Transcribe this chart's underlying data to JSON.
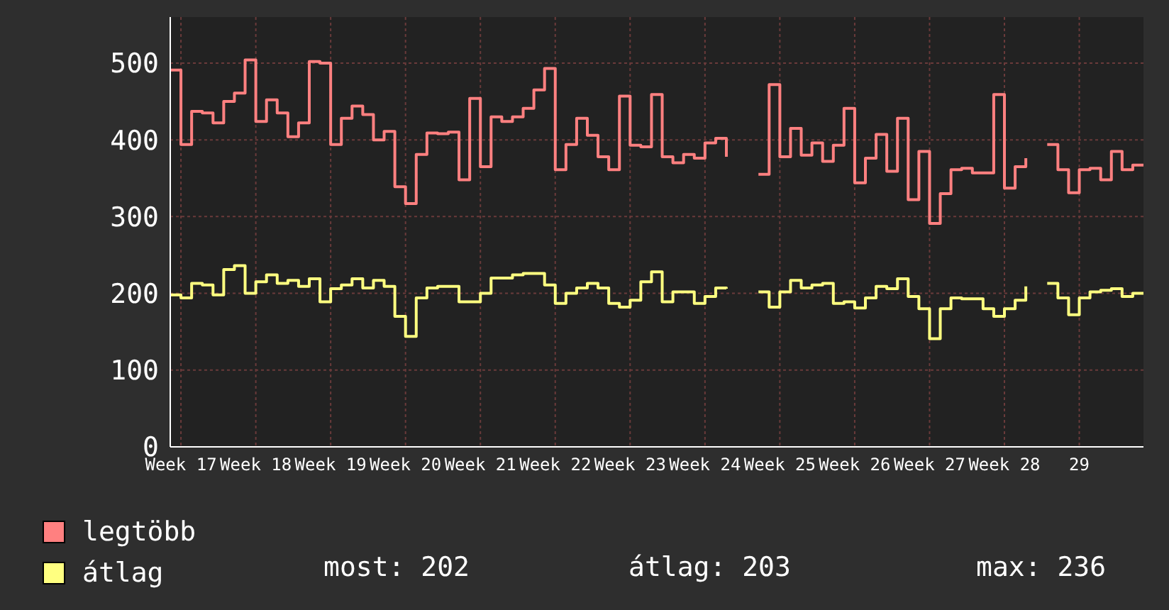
{
  "chart_data": {
    "type": "step",
    "categories": [
      null,
      "Week 17",
      null,
      null,
      null,
      null,
      null,
      null,
      "Week 18",
      null,
      null,
      null,
      null,
      null,
      null,
      "Week 19",
      null,
      null,
      null,
      null,
      null,
      null,
      "Week 20",
      null,
      null,
      null,
      null,
      null,
      null,
      "Week 21",
      null,
      null,
      null,
      null,
      null,
      null,
      "Week 22",
      null,
      null,
      null,
      null,
      null,
      null,
      "Week 23",
      null,
      null,
      null,
      null,
      null,
      null,
      "Week 24",
      null,
      null,
      null,
      null,
      null,
      null,
      "Week 25",
      null,
      null,
      null,
      null,
      null,
      null,
      "Week 26",
      null,
      null,
      null,
      null,
      null,
      null,
      "Week 27",
      null,
      null,
      null,
      null,
      null,
      null,
      "Week 28",
      null,
      null,
      null,
      null,
      null,
      null,
      "29",
      null,
      null,
      null,
      null,
      null,
      null
    ],
    "series": [
      {
        "name": "legtöbb",
        "color": "#ff8080",
        "values": [
          491,
          394,
          437,
          435,
          422,
          450,
          461,
          504,
          424,
          452,
          435,
          404,
          422,
          502,
          500,
          394,
          428,
          444,
          433,
          400,
          411,
          339,
          317,
          381,
          409,
          408,
          410,
          348,
          454,
          365,
          430,
          424,
          430,
          441,
          465,
          493,
          361,
          394,
          428,
          406,
          378,
          361,
          457,
          393,
          391,
          459,
          378,
          370,
          381,
          376,
          396,
          402,
          378,
          null,
          null,
          355,
          472,
          378,
          415,
          380,
          396,
          372,
          393,
          441,
          344,
          376,
          407,
          359,
          428,
          322,
          385,
          291,
          330,
          361,
          363,
          357,
          357,
          459,
          337,
          365,
          376,
          null,
          394,
          361,
          331,
          361,
          363,
          348,
          385,
          361,
          367,
          367
        ]
      },
      {
        "name": "átlag",
        "color": "#ffff80",
        "values": [
          198,
          194,
          213,
          211,
          198,
          231,
          236,
          200,
          215,
          224,
          213,
          217,
          209,
          219,
          189,
          206,
          211,
          219,
          207,
          217,
          209,
          170,
          144,
          194,
          207,
          209,
          209,
          189,
          189,
          200,
          220,
          220,
          224,
          226,
          226,
          211,
          187,
          200,
          207,
          213,
          207,
          187,
          182,
          191,
          215,
          228,
          189,
          202,
          202,
          187,
          196,
          207,
          206,
          null,
          null,
          202,
          182,
          202,
          217,
          207,
          211,
          213,
          187,
          189,
          181,
          194,
          209,
          206,
          219,
          196,
          180,
          141,
          180,
          194,
          193,
          193,
          180,
          170,
          180,
          191,
          209,
          null,
          213,
          194,
          172,
          194,
          202,
          204,
          206,
          196,
          200,
          200
        ]
      }
    ],
    "ylim": [
      0,
      560
    ],
    "yticks": [
      0,
      100,
      200,
      300,
      400,
      500
    ],
    "grid": true,
    "legend": "bottom",
    "annotations": [
      "most: 202",
      "átlag: 203",
      "max: 236"
    ]
  }
}
